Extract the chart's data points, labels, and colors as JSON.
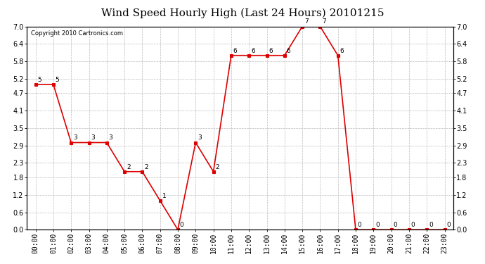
{
  "title": "Wind Speed Hourly High (Last 24 Hours) 20101215",
  "copyright": "Copyright 2010 Cartronics.com",
  "hours": [
    "00:00",
    "01:00",
    "02:00",
    "03:00",
    "04:00",
    "05:00",
    "06:00",
    "07:00",
    "08:00",
    "09:00",
    "10:00",
    "11:00",
    "12:00",
    "13:00",
    "14:00",
    "15:00",
    "16:00",
    "17:00",
    "18:00",
    "19:00",
    "20:00",
    "21:00",
    "22:00",
    "23:00"
  ],
  "values": [
    5,
    5,
    3,
    3,
    3,
    2,
    2,
    1,
    0,
    3,
    2,
    6,
    6,
    6,
    6,
    7,
    7,
    6,
    0,
    0,
    0,
    0,
    0,
    0
  ],
  "line_color": "#dd0000",
  "bg_color": "#ffffff",
  "grid_color": "#bbbbbb",
  "ylim": [
    0,
    7.0
  ],
  "yticks": [
    0.0,
    0.6,
    1.2,
    1.8,
    2.3,
    2.9,
    3.5,
    4.1,
    4.7,
    5.2,
    5.8,
    6.4,
    7.0
  ],
  "title_fontsize": 11,
  "tick_fontsize": 7,
  "annotation_fontsize": 6.5,
  "copyright_fontsize": 6
}
